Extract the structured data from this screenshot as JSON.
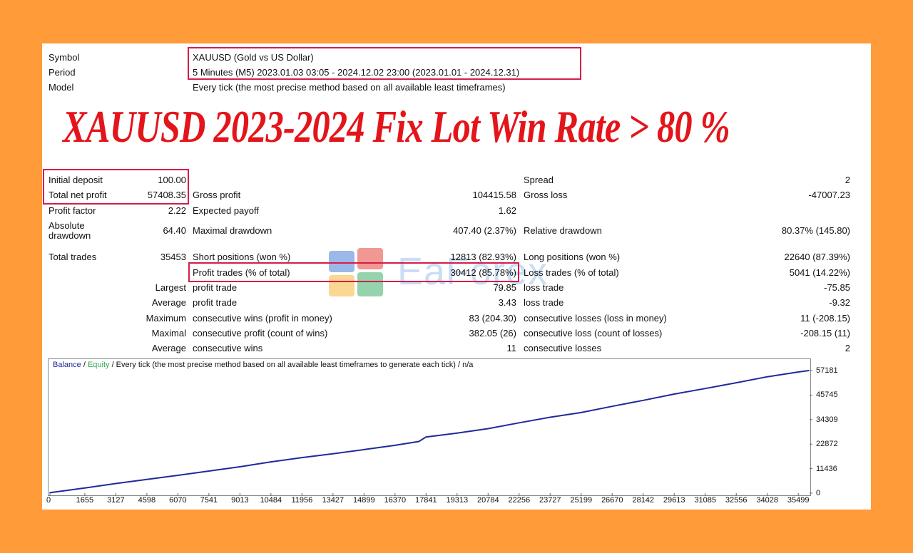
{
  "header": {
    "symbol_label": "Symbol",
    "symbol_value": "XAUUSD (Gold vs US Dollar)",
    "period_label": "Period",
    "period_value": "5 Minutes (M5) 2023.01.03 03:05 - 2024.12.02 23:00 (2023.01.01 - 2024.12.31)",
    "model_label": "Model",
    "model_value": "Every tick (the most precise method based on all available least timeframes)"
  },
  "headline": "XAUUSD 2023-2024 Fix Lot Win Rate > 80 %",
  "watermark": "EaForex",
  "stats": {
    "initial_deposit_label": "Initial deposit",
    "initial_deposit": "100.00",
    "spread_label": "Spread",
    "spread": "2",
    "total_net_profit_label": "Total net profit",
    "total_net_profit": "57408.35",
    "gross_profit_label": "Gross profit",
    "gross_profit": "104415.58",
    "gross_loss_label": "Gross loss",
    "gross_loss": "-47007.23",
    "profit_factor_label": "Profit factor",
    "profit_factor": "2.22",
    "expected_payoff_label": "Expected payoff",
    "expected_payoff": "1.62",
    "absolute_drawdown_label_1": "Absolute",
    "absolute_drawdown_label_2": "drawdown",
    "absolute_drawdown": "64.40",
    "maximal_drawdown_label": "Maximal drawdown",
    "maximal_drawdown": "407.40 (2.37%)",
    "relative_drawdown_label": "Relative drawdown",
    "relative_drawdown": "80.37% (145.80)",
    "total_trades_label": "Total trades",
    "total_trades": "35453",
    "short_positions_label": "Short positions (won %)",
    "short_positions": "12813 (82.93%)",
    "long_positions_label": "Long positions (won %)",
    "long_positions": "22640 (87.39%)",
    "profit_trades_label": "Profit trades (% of total)",
    "profit_trades": "30412 (85.78%)",
    "loss_trades_label": "Loss trades (% of total)",
    "loss_trades": "5041 (14.22%)",
    "largest_label": "Largest",
    "largest_profit_label": "profit trade",
    "largest_profit": "79.85",
    "largest_loss_label": "loss trade",
    "largest_loss": "-75.85",
    "average_label": "Average",
    "average_profit_label": "profit trade",
    "average_profit": "3.43",
    "average_loss_label": "loss trade",
    "average_loss": "-9.32",
    "maximum_label": "Maximum",
    "max_consec_wins_label": "consecutive wins (profit in money)",
    "max_consec_wins": "83 (204.30)",
    "max_consec_losses_label": "consecutive losses (loss in money)",
    "max_consec_losses": "11 (-208.15)",
    "maximal_label": "Maximal",
    "maximal_consec_profit_label": "consecutive profit (count of wins)",
    "maximal_consec_profit": "382.05 (26)",
    "maximal_consec_loss_label": "consecutive loss (count of losses)",
    "maximal_consec_loss": "-208.15 (11)",
    "average2_label": "Average",
    "avg_consec_wins_label": "consecutive wins",
    "avg_consec_wins": "11",
    "avg_consec_losses_label": "consecutive losses",
    "avg_consec_losses": "2"
  },
  "chart_legend": {
    "balance": "Balance",
    "sep1": " / ",
    "equity": "Equity",
    "rest": " / Every tick (the most precise method based on all available least timeframes to generate each tick) / n/a"
  },
  "colors": {
    "background": "#FF9B38",
    "highlight_box": "#D81C4A",
    "headline": "#E3151B",
    "balance_line": "#1F2A9B",
    "equity_label": "#2FA84F"
  },
  "chart_data": {
    "type": "line",
    "title": "",
    "xlabel": "",
    "ylabel": "",
    "x_ticks": [
      "0",
      "1655",
      "3127",
      "4598",
      "6070",
      "7541",
      "9013",
      "10484",
      "11956",
      "13427",
      "14899",
      "16370",
      "17841",
      "19313",
      "20784",
      "22256",
      "23727",
      "25199",
      "26670",
      "28142",
      "29613",
      "31085",
      "32556",
      "34028",
      "35499"
    ],
    "y_ticks": [
      "0",
      "11436",
      "22872",
      "34309",
      "45745",
      "57181"
    ],
    "xlim": [
      0,
      36000
    ],
    "ylim": [
      0,
      57181
    ],
    "series": [
      {
        "name": "Balance",
        "x": [
          0,
          1655,
          3127,
          4598,
          6070,
          7541,
          9013,
          10484,
          11956,
          13427,
          14899,
          16370,
          17500,
          17841,
          19313,
          20784,
          22256,
          23727,
          25199,
          26670,
          28142,
          29613,
          31085,
          32556,
          34028,
          35499,
          36000
        ],
        "y": [
          200,
          2400,
          4500,
          6400,
          8300,
          10300,
          12300,
          14600,
          16600,
          18400,
          20300,
          22300,
          24100,
          26200,
          28000,
          30100,
          32800,
          35400,
          37600,
          40500,
          43300,
          46200,
          48800,
          51500,
          54300,
          56500,
          57181
        ]
      }
    ]
  }
}
